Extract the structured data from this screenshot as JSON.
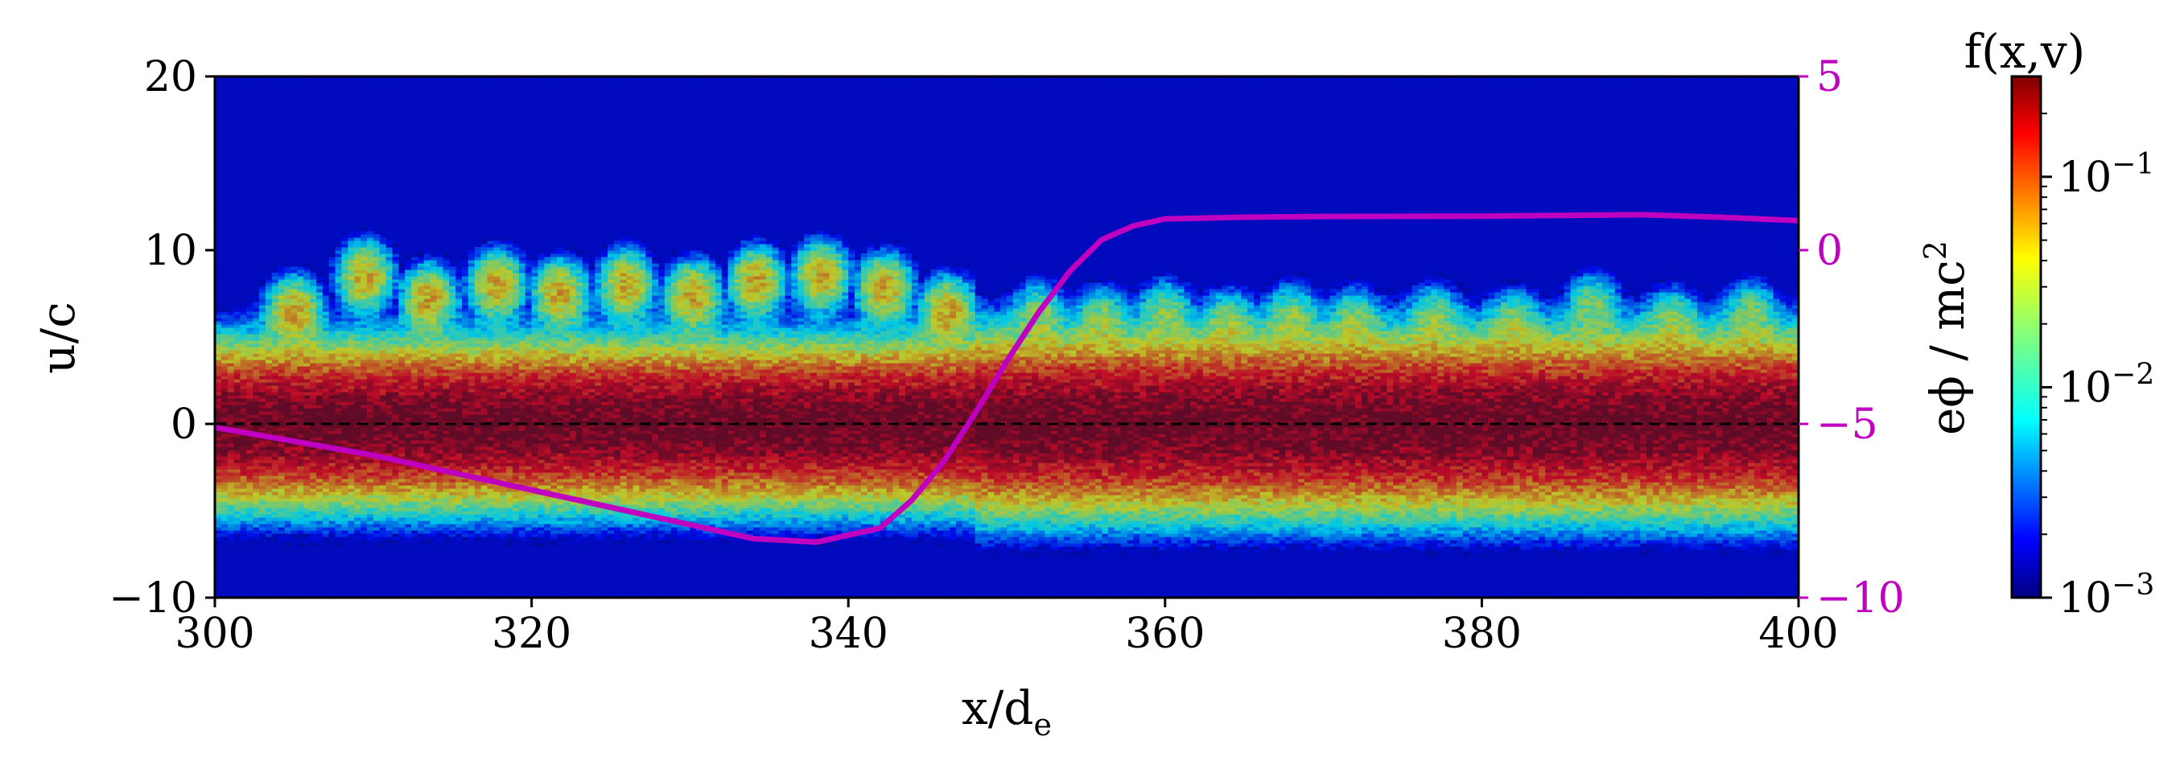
{
  "chart_data": {
    "type": "heatmap",
    "colormap": "jet",
    "xlabel": "x/d",
    "xlabel_sub": "e",
    "ylabel": "u/c",
    "y2label": "eϕ / mc",
    "y2label_sup": "2",
    "colorbar_title": "f(x,v)",
    "colorbar_scale": "log",
    "xlim": [
      300,
      400
    ],
    "ylim": [
      -10,
      20
    ],
    "y2lim": [
      -10,
      5
    ],
    "clim": [
      0.001,
      0.3
    ],
    "x_ticks": [
      "300",
      "320",
      "340",
      "360",
      "380",
      "400"
    ],
    "y_ticks": [
      "−10",
      "0",
      "10",
      "20"
    ],
    "y2_ticks": [
      "−10",
      "−5",
      "0",
      "5"
    ],
    "colorbar_ticks": [
      {
        "value": 0.1,
        "base": "10",
        "exp": "−1"
      },
      {
        "value": 0.01,
        "base": "10",
        "exp": "−2"
      },
      {
        "value": 0.001,
        "base": "10",
        "exp": "−3"
      }
    ],
    "reference_line": {
      "y": 0,
      "style": "dashed",
      "color": "#000000"
    },
    "potential_line": {
      "color": "#c000c0",
      "axis": "right",
      "x": [
        300,
        305,
        310,
        315,
        320,
        325,
        330,
        334,
        338,
        342,
        344,
        346,
        348,
        350,
        352,
        354,
        356,
        358,
        360,
        365,
        370,
        380,
        390,
        395,
        400
      ],
      "y": [
        -5.1,
        -5.5,
        -5.9,
        -6.4,
        -6.9,
        -7.4,
        -7.9,
        -8.3,
        -8.4,
        -8.0,
        -7.2,
        -6.1,
        -4.7,
        -3.2,
        -1.8,
        -0.6,
        0.3,
        0.7,
        0.9,
        0.95,
        0.97,
        0.98,
        1.02,
        0.95,
        0.85
      ]
    },
    "distribution": {
      "description_values": "core width (sigma, u/c) and beam oscillation",
      "beam_x": [
        305,
        309.5,
        313.5,
        317.8,
        321.8,
        326,
        330.2,
        334.2,
        338.3,
        342.3,
        346.3,
        352,
        356,
        360,
        364,
        368,
        372,
        377,
        382,
        387,
        392,
        397
      ],
      "beam_peak_u": [
        6.5,
        8.5,
        7.2,
        8.0,
        7.5,
        8.0,
        7.4,
        8.2,
        8.5,
        7.8,
        6.5,
        6.3,
        6.0,
        6.4,
        5.8,
        6.2,
        5.9,
        6.1,
        5.8,
        6.8,
        5.9,
        6.3
      ]
    }
  }
}
